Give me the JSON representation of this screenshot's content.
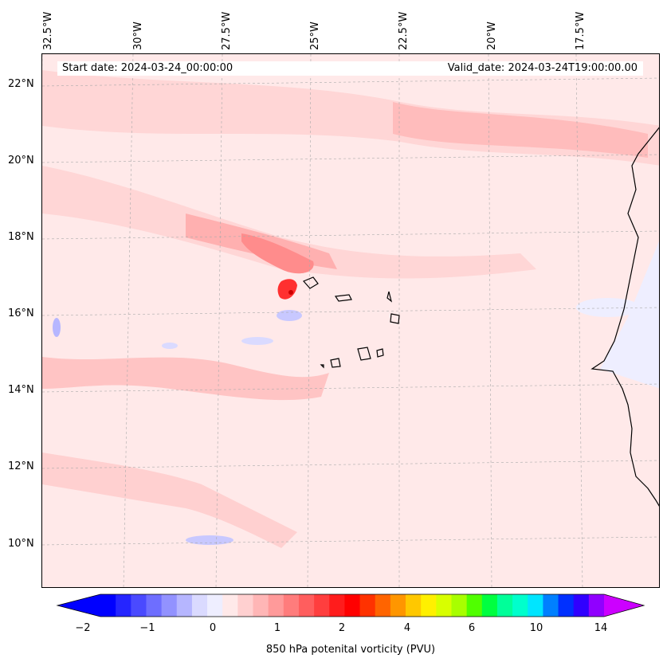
{
  "map": {
    "longitude_labels": [
      "32.5°W",
      "30°W",
      "27.5°W",
      "25°W",
      "22.5°W",
      "20°W",
      "17.5°W"
    ],
    "latitude_labels": [
      "22°N",
      "20°N",
      "18°N",
      "16°N",
      "14°N",
      "12°N",
      "10°N"
    ],
    "start_date": "Start date: 2024-03-24_00:00:00",
    "valid_date": "Valid_date: 2024-03-24T19:00:00.00",
    "background_color": "#ffe9e9",
    "features": [
      "west-africa-coastline",
      "cape-verde-islands",
      "vorticity-maximum-near-santo-antao"
    ]
  },
  "colorbar": {
    "title": "850 hPa potenital vorticity (PVU)",
    "tick_labels": [
      "−2",
      "−1",
      "0",
      "1",
      "2",
      "4",
      "6",
      "10",
      "14"
    ],
    "colors": [
      "#0000ff",
      "#2525ff",
      "#4a4aff",
      "#6e6eff",
      "#9292ff",
      "#b6b6ff",
      "#dadaff",
      "#eeeeff",
      "#ffe9e9",
      "#ffd0d0",
      "#ffb6b6",
      "#ff9a9a",
      "#ff7c7c",
      "#ff5e5e",
      "#ff3e3e",
      "#ff1c1c",
      "#ff0000",
      "#ff3200",
      "#ff6400",
      "#ff9600",
      "#ffc800",
      "#fff000",
      "#d8ff00",
      "#a8ff00",
      "#50ff00",
      "#00ff40",
      "#00ff99",
      "#00ffcc",
      "#00e5ff",
      "#0080ff",
      "#0030ff",
      "#3000ff",
      "#9000ff"
    ],
    "extend_low_color": "#0000ff",
    "extend_high_color": "#cc00ff"
  }
}
